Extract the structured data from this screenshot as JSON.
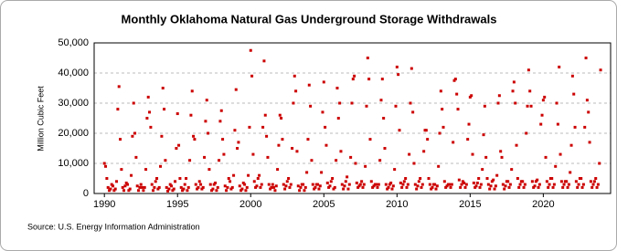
{
  "chart_data": {
    "type": "scatter",
    "title": "Monthly Oklahoma Natural  Gas Underground Storage Withdrawals",
    "y_label": "Million Cubic Feet",
    "source": "Source: U.S. Energy Information Administration",
    "color": "#cc0000",
    "grid": true,
    "xlim": [
      1989.3,
      2024.6
    ],
    "xticks": [
      1990,
      1995,
      2000,
      2005,
      2010,
      2015,
      2020
    ],
    "ylim": [
      0,
      50000
    ],
    "yticks": [
      0,
      {
        "value": 10000,
        "label": "10,000"
      },
      {
        "value": 20000,
        "label": "20,000"
      },
      {
        "value": 30000,
        "label": "30,000"
      },
      {
        "value": 40000,
        "label": "40,000"
      },
      {
        "value": 50000,
        "label": "50,000"
      }
    ],
    "x": [
      1990,
      1990.083,
      1990.167,
      1990.25,
      1990.333,
      1990.417,
      1990.5,
      1990.583,
      1990.667,
      1990.75,
      1990.833,
      1990.917,
      1991,
      1991.083,
      1991.167,
      1991.25,
      1991.333,
      1991.417,
      1991.5,
      1991.583,
      1991.667,
      1991.75,
      1991.833,
      1991.917,
      1992,
      1992.083,
      1992.167,
      1992.25,
      1992.333,
      1992.417,
      1992.5,
      1992.583,
      1992.667,
      1992.75,
      1992.833,
      1992.917,
      1993,
      1993.083,
      1993.167,
      1993.25,
      1993.333,
      1993.417,
      1993.5,
      1993.583,
      1993.667,
      1993.75,
      1993.833,
      1993.917,
      1994,
      1994.083,
      1994.167,
      1994.25,
      1994.333,
      1994.417,
      1994.5,
      1994.583,
      1994.667,
      1994.75,
      1994.833,
      1994.917,
      1995,
      1995.083,
      1995.167,
      1995.25,
      1995.333,
      1995.417,
      1995.5,
      1995.583,
      1995.667,
      1995.75,
      1995.833,
      1995.917,
      1996,
      1996.083,
      1996.167,
      1996.25,
      1996.333,
      1996.417,
      1996.5,
      1996.583,
      1996.667,
      1996.75,
      1996.833,
      1996.917,
      1997,
      1997.083,
      1997.167,
      1997.25,
      1997.333,
      1997.417,
      1997.5,
      1997.583,
      1997.667,
      1997.75,
      1997.833,
      1997.917,
      1998,
      1998.083,
      1998.167,
      1998.25,
      1998.333,
      1998.417,
      1998.5,
      1998.583,
      1998.667,
      1998.75,
      1998.833,
      1998.917,
      1999,
      1999.083,
      1999.167,
      1999.25,
      1999.333,
      1999.417,
      1999.5,
      1999.583,
      1999.667,
      1999.75,
      1999.833,
      1999.917,
      2000,
      2000.083,
      2000.167,
      2000.25,
      2000.333,
      2000.417,
      2000.5,
      2000.583,
      2000.667,
      2000.75,
      2000.833,
      2000.917,
      2001,
      2001.083,
      2001.167,
      2001.25,
      2001.333,
      2001.417,
      2001.5,
      2001.583,
      2001.667,
      2001.75,
      2001.833,
      2001.917,
      2002,
      2002.083,
      2002.167,
      2002.25,
      2002.333,
      2002.417,
      2002.5,
      2002.583,
      2002.667,
      2002.75,
      2002.833,
      2002.917,
      2003,
      2003.083,
      2003.167,
      2003.25,
      2003.333,
      2003.417,
      2003.5,
      2003.583,
      2003.667,
      2003.75,
      2003.833,
      2003.917,
      2004,
      2004.083,
      2004.167,
      2004.25,
      2004.333,
      2004.417,
      2004.5,
      2004.583,
      2004.667,
      2004.75,
      2004.833,
      2004.917,
      2005,
      2005.083,
      2005.167,
      2005.25,
      2005.333,
      2005.417,
      2005.5,
      2005.583,
      2005.667,
      2005.75,
      2005.833,
      2005.917,
      2006,
      2006.083,
      2006.167,
      2006.25,
      2006.333,
      2006.417,
      2006.5,
      2006.583,
      2006.667,
      2006.75,
      2006.833,
      2006.917,
      2007,
      2007.083,
      2007.167,
      2007.25,
      2007.333,
      2007.417,
      2007.5,
      2007.583,
      2007.667,
      2007.75,
      2007.833,
      2007.917,
      2008,
      2008.083,
      2008.167,
      2008.25,
      2008.333,
      2008.417,
      2008.5,
      2008.583,
      2008.667,
      2008.75,
      2008.833,
      2008.917,
      2009,
      2009.083,
      2009.167,
      2009.25,
      2009.333,
      2009.417,
      2009.5,
      2009.583,
      2009.667,
      2009.75,
      2009.833,
      2009.917,
      2010,
      2010.083,
      2010.167,
      2010.25,
      2010.333,
      2010.417,
      2010.5,
      2010.583,
      2010.667,
      2010.75,
      2010.833,
      2010.917,
      2011,
      2011.083,
      2011.167,
      2011.25,
      2011.333,
      2011.417,
      2011.5,
      2011.583,
      2011.667,
      2011.75,
      2011.833,
      2011.917,
      2012,
      2012.083,
      2012.167,
      2012.25,
      2012.333,
      2012.417,
      2012.5,
      2012.583,
      2012.667,
      2012.75,
      2012.833,
      2012.917,
      2013,
      2013.083,
      2013.167,
      2013.25,
      2013.333,
      2013.417,
      2013.5,
      2013.583,
      2013.667,
      2013.75,
      2013.833,
      2013.917,
      2014,
      2014.083,
      2014.167,
      2014.25,
      2014.333,
      2014.417,
      2014.5,
      2014.583,
      2014.667,
      2014.75,
      2014.833,
      2014.917,
      2015,
      2015.083,
      2015.167,
      2015.25,
      2015.333,
      2015.417,
      2015.5,
      2015.583,
      2015.667,
      2015.75,
      2015.833,
      2015.917,
      2016,
      2016.083,
      2016.167,
      2016.25,
      2016.333,
      2016.417,
      2016.5,
      2016.583,
      2016.667,
      2016.75,
      2016.833,
      2016.917,
      2017,
      2017.083,
      2017.167,
      2017.25,
      2017.333,
      2017.417,
      2017.5,
      2017.583,
      2017.667,
      2017.75,
      2017.833,
      2017.917,
      2018,
      2018.083,
      2018.167,
      2018.25,
      2018.333,
      2018.417,
      2018.5,
      2018.583,
      2018.667,
      2018.75,
      2018.833,
      2018.917,
      2019,
      2019.083,
      2019.167,
      2019.25,
      2019.333,
      2019.417,
      2019.5,
      2019.583,
      2019.667,
      2019.75,
      2019.833,
      2019.917,
      2020,
      2020.083,
      2020.167,
      2020.25,
      2020.333,
      2020.417,
      2020.5,
      2020.583,
      2020.667,
      2020.75,
      2020.833,
      2020.917,
      2021,
      2021.083,
      2021.167,
      2021.25,
      2021.333,
      2021.417,
      2021.5,
      2021.583,
      2021.667,
      2021.75,
      2021.833,
      2021.917,
      2022,
      2022.083,
      2022.167,
      2022.25,
      2022.333,
      2022.417,
      2022.5,
      2022.583,
      2022.667,
      2022.75,
      2022.833,
      2022.917,
      2023,
      2023.083,
      2023.167,
      2023.25,
      2023.333,
      2023.417,
      2023.5,
      2023.583,
      2023.667,
      2023.75,
      2023.833,
      2023.917
    ],
    "values": [
      10000,
      9000,
      5000,
      2000,
      1000,
      1500,
      3000,
      2500,
      1000,
      1500,
      4000,
      28000,
      35500,
      18000,
      8000,
      2000,
      1000,
      2500,
      3500,
      3000,
      1000,
      1500,
      6000,
      19000,
      30000,
      20000,
      12000,
      2500,
      1000,
      2000,
      3000,
      2000,
      1000,
      2000,
      8000,
      25000,
      32000,
      27000,
      22000,
      3000,
      1000,
      2000,
      4000,
      5000,
      1500,
      2000,
      9000,
      19000,
      35000,
      28000,
      11000,
      2000,
      800,
      1500,
      3000,
      2500,
      1000,
      1500,
      4000,
      15000,
      26500,
      16000,
      5000,
      2000,
      1000,
      1500,
      3000,
      5000,
      1000,
      2000,
      11000,
      26000,
      34000,
      19000,
      18000,
      3000,
      1500,
      2000,
      4000,
      3000,
      1500,
      2000,
      12000,
      24000,
      31000,
      20000,
      8000,
      3000,
      1000,
      1500,
      3000,
      3500,
      1000,
      2000,
      11000,
      24000,
      27500,
      18000,
      13000,
      2500,
      1000,
      2000,
      5000,
      4000,
      1500,
      2000,
      6000,
      21000,
      34500,
      15000,
      17000,
      2500,
      1000,
      1500,
      3500,
      3000,
      1000,
      2000,
      6000,
      22000,
      47500,
      39000,
      13000,
      4000,
      2000,
      2500,
      5000,
      6000,
      2000,
      3000,
      22000,
      44000,
      26000,
      19000,
      12000,
      3000,
      1500,
      2000,
      3000,
      2000,
      1000,
      2500,
      8000,
      16000,
      26000,
      25000,
      18000,
      3000,
      1500,
      2500,
      4000,
      5000,
      2000,
      3000,
      15000,
      30000,
      39000,
      34000,
      14000,
      2500,
      1000,
      2000,
      3000,
      3000,
      1000,
      2000,
      7000,
      18000,
      36000,
      29000,
      11000,
      3000,
      1500,
      2000,
      3000,
      3000,
      1500,
      2500,
      7000,
      27000,
      37000,
      22000,
      16000,
      3500,
      2000,
      2500,
      4000,
      5000,
      1500,
      2000,
      11000,
      35000,
      25000,
      30000,
      14000,
      3000,
      1500,
      2500,
      4000,
      5500,
      1500,
      3000,
      12000,
      30000,
      38000,
      39000,
      10000,
      3500,
      2000,
      2500,
      3000,
      4000,
      2000,
      3000,
      9000,
      29000,
      45000,
      38000,
      18000,
      4000,
      2000,
      2500,
      3000,
      3000,
      2000,
      3000,
      11000,
      31000,
      38000,
      25000,
      15000,
      3000,
      1500,
      2000,
      3000,
      3500,
      1500,
      2500,
      8000,
      29000,
      42000,
      39500,
      21000,
      3500,
      2000,
      3000,
      4000,
      5000,
      2000,
      3000,
      13000,
      30000,
      41500,
      27000,
      10000,
      3000,
      1500,
      2500,
      4000,
      5000,
      2000,
      3000,
      14000,
      21000,
      21000,
      18000,
      5000,
      3000,
      1500,
      2000,
      3000,
      3000,
      1500,
      2500,
      9000,
      20000,
      34000,
      28000,
      22000,
      4000,
      2000,
      2500,
      3000,
      3000,
      2000,
      3000,
      17000,
      37500,
      38000,
      33000,
      28000,
      4500,
      2000,
      3000,
      4000,
      3500,
      2000,
      3000,
      18000,
      23000,
      32000,
      32500,
      13000,
      3500,
      2000,
      2500,
      3500,
      5000,
      2000,
      3000,
      8000,
      19500,
      29000,
      12000,
      5000,
      3000,
      1500,
      2500,
      4000,
      4500,
      1500,
      2500,
      6000,
      30000,
      32500,
      14000,
      12000,
      3000,
      1500,
      2500,
      4000,
      4000,
      2000,
      3000,
      8000,
      34000,
      37000,
      30000,
      16000,
      5000,
      2000,
      3000,
      4000,
      4000,
      2000,
      3000,
      20000,
      29000,
      41000,
      34000,
      29000,
      4000,
      2000,
      2500,
      4000,
      4500,
      2000,
      3000,
      23000,
      26000,
      31000,
      32000,
      12000,
      4000,
      2000,
      3000,
      5000,
      5000,
      2000,
      3000,
      9000,
      30000,
      23000,
      42000,
      13000,
      4000,
      2000,
      3000,
      4000,
      4000,
      2000,
      3000,
      7000,
      16000,
      39000,
      33000,
      22000,
      4000,
      2000,
      3000,
      5000,
      5000,
      2000,
      3000,
      22000,
      45000,
      31000,
      27000,
      17000,
      4000,
      2000,
      3000,
      4000,
      5000,
      2000,
      3000,
      10000,
      41000
    ]
  }
}
